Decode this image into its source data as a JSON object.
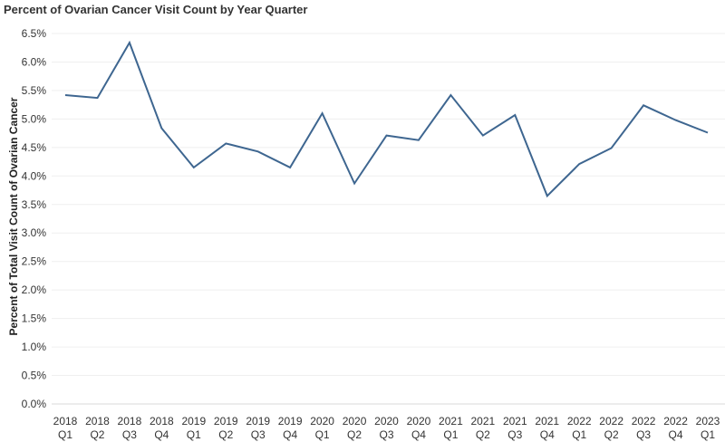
{
  "chart_data": {
    "type": "line",
    "title": "Percent of Ovarian Cancer Visit Count by Year Quarter",
    "xlabel": "",
    "ylabel": "Percent of Total Visit Count of Ovarian Cancer",
    "ylim": [
      0,
      6.5
    ],
    "y_ticks": [
      "0.0%",
      "0.5%",
      "1.0%",
      "1.5%",
      "2.0%",
      "2.5%",
      "3.0%",
      "3.5%",
      "4.0%",
      "4.5%",
      "5.0%",
      "5.5%",
      "6.0%",
      "6.5%"
    ],
    "categories": [
      {
        "year": "2018",
        "quarter": "Q1"
      },
      {
        "year": "2018",
        "quarter": "Q2"
      },
      {
        "year": "2018",
        "quarter": "Q3"
      },
      {
        "year": "2018",
        "quarter": "Q4"
      },
      {
        "year": "2019",
        "quarter": "Q1"
      },
      {
        "year": "2019",
        "quarter": "Q2"
      },
      {
        "year": "2019",
        "quarter": "Q3"
      },
      {
        "year": "2019",
        "quarter": "Q4"
      },
      {
        "year": "2020",
        "quarter": "Q1"
      },
      {
        "year": "2020",
        "quarter": "Q2"
      },
      {
        "year": "2020",
        "quarter": "Q3"
      },
      {
        "year": "2020",
        "quarter": "Q4"
      },
      {
        "year": "2021",
        "quarter": "Q1"
      },
      {
        "year": "2021",
        "quarter": "Q2"
      },
      {
        "year": "2021",
        "quarter": "Q3"
      },
      {
        "year": "2021",
        "quarter": "Q4"
      },
      {
        "year": "2022",
        "quarter": "Q1"
      },
      {
        "year": "2022",
        "quarter": "Q2"
      },
      {
        "year": "2022",
        "quarter": "Q3"
      },
      {
        "year": "2022",
        "quarter": "Q4"
      },
      {
        "year": "2023",
        "quarter": "Q1"
      }
    ],
    "values": [
      5.42,
      5.37,
      6.34,
      4.84,
      4.15,
      4.57,
      4.43,
      4.15,
      5.1,
      3.87,
      4.71,
      4.63,
      5.42,
      4.71,
      5.07,
      3.65,
      4.21,
      4.49,
      5.24,
      4.98,
      4.76
    ],
    "grid": true,
    "colors": {
      "line": "#3e6690",
      "grid": "#efefef",
      "axis": "#d9d9d9"
    }
  }
}
